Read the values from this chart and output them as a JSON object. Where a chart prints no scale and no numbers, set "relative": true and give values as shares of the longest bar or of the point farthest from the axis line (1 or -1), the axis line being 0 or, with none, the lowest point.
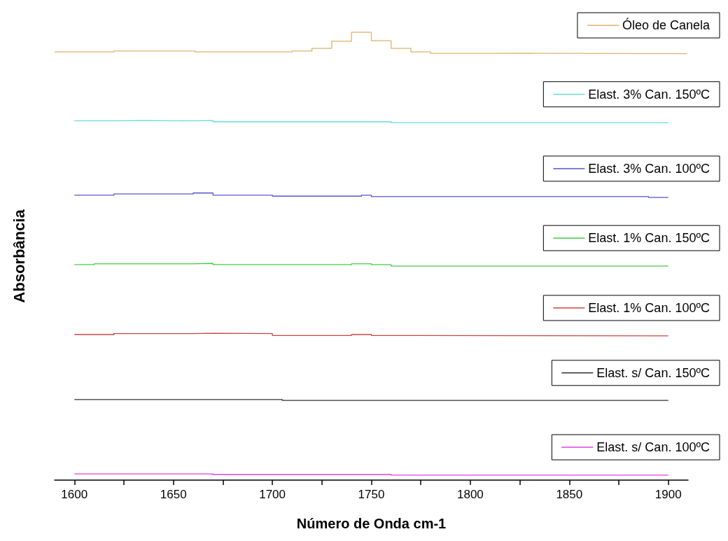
{
  "chart_data": {
    "type": "step",
    "relative": true,
    "xlabel": "Número de Onda cm-1",
    "ylabel": "Absorbância",
    "xlim": [
      1590,
      1910
    ],
    "xticks": [
      1600,
      {
        "value": 1625,
        "label": null
      },
      1650,
      {
        "value": 1675,
        "label": null
      },
      1700,
      {
        "value": 1725,
        "label": null
      },
      1750,
      {
        "value": 1775,
        "label": null
      },
      1800,
      {
        "value": 1825,
        "label": null
      },
      1850,
      {
        "value": 1875,
        "label": null
      },
      1900
    ],
    "grid": false,
    "legend": "right",
    "marker": "none",
    "line_style": "solid",
    "series": [
      {
        "name": "Óleo de Canela",
        "color": "#e0b26e",
        "x": [
          1590,
          1620,
          1661,
          1710,
          1720,
          1730,
          1740,
          1750,
          1760,
          1770,
          1780,
          1810,
          1909.5
        ],
        "values": [
          0.956,
          0.958,
          0.956,
          0.958,
          0.964,
          0.98,
          1.0,
          0.981,
          0.964,
          0.956,
          0.953,
          0.952,
          0.952
        ]
      },
      {
        "name": "Elast. 3% Can. 150ºC",
        "color": "#66dddd",
        "x": [
          1600,
          1620,
          1635,
          1660,
          1670,
          1760,
          1900
        ],
        "values": [
          0.802,
          0.803,
          0.802,
          0.803,
          0.8,
          0.798,
          0.798
        ]
      },
      {
        "name": "Elast. 3% Can. 100ºC",
        "color": "#5555cc",
        "x": [
          1600,
          1620,
          1660,
          1670,
          1700,
          1745,
          1750,
          1890,
          1900
        ],
        "values": [
          0.636,
          0.639,
          0.641,
          0.636,
          0.634,
          0.636,
          0.633,
          0.631,
          0.631
        ]
      },
      {
        "name": "Elast. 1% Can. 150ºC",
        "color": "#44cc44",
        "x": [
          1600,
          1610,
          1660,
          1670,
          1740,
          1750,
          1760,
          1900
        ],
        "values": [
          0.481,
          0.483,
          0.484,
          0.481,
          0.483,
          0.481,
          0.478,
          0.478
        ]
      },
      {
        "name": "Elast. 1% Can. 100ºC",
        "color": "#cc4444",
        "x": [
          1600,
          1620,
          1660,
          1670,
          1700,
          1740,
          1750,
          1770,
          1900
        ],
        "values": [
          0.325,
          0.327,
          0.328,
          0.327,
          0.323,
          0.325,
          0.323,
          0.322,
          0.322
        ]
      },
      {
        "name": "Elast. s/ Can. 150ºC",
        "color": "#333333",
        "x": [
          1600,
          1705,
          1900
        ],
        "values": [
          0.18,
          0.178,
          0.178
        ]
      },
      {
        "name": "Elast. s/ Can. 100ºC",
        "color": "#dd44dd",
        "x": [
          1600,
          1670,
          1760,
          1900
        ],
        "values": [
          0.014,
          0.0125,
          0.011,
          0.011
        ]
      }
    ]
  }
}
